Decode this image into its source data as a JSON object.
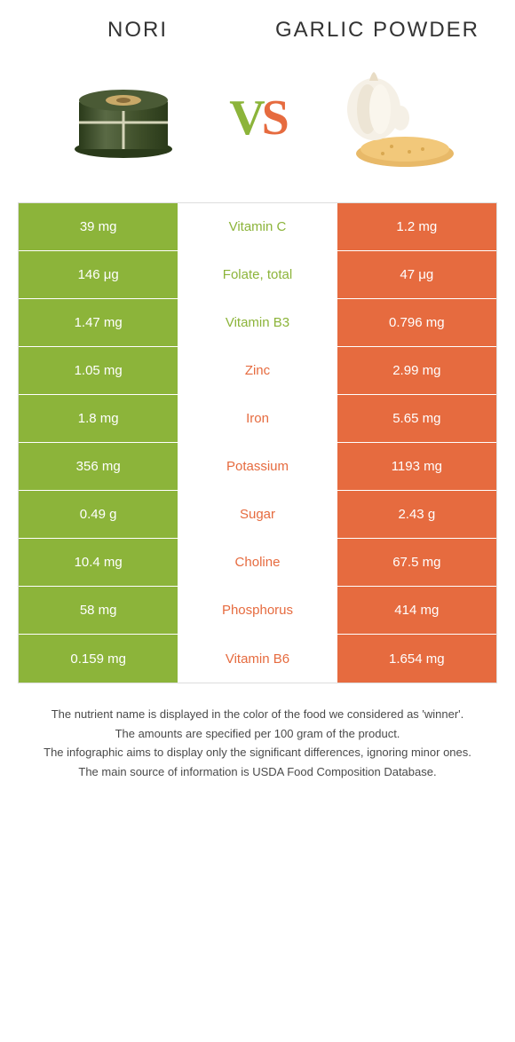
{
  "header": {
    "food1": "Nori",
    "food2": "Garlic powder"
  },
  "vs": {
    "v": "V",
    "s": "S"
  },
  "colors": {
    "green": "#8cb43a",
    "orange": "#e66b3f"
  },
  "rows": [
    {
      "left": "39 mg",
      "label": "Vitamin C",
      "right": "1.2 mg",
      "winner": "green"
    },
    {
      "left": "146 μg",
      "label": "Folate, total",
      "right": "47 μg",
      "winner": "green"
    },
    {
      "left": "1.47 mg",
      "label": "Vitamin B3",
      "right": "0.796 mg",
      "winner": "green"
    },
    {
      "left": "1.05 mg",
      "label": "Zinc",
      "right": "2.99 mg",
      "winner": "orange"
    },
    {
      "left": "1.8 mg",
      "label": "Iron",
      "right": "5.65 mg",
      "winner": "orange"
    },
    {
      "left": "356 mg",
      "label": "Potassium",
      "right": "1193 mg",
      "winner": "orange"
    },
    {
      "left": "0.49 g",
      "label": "Sugar",
      "right": "2.43 g",
      "winner": "orange"
    },
    {
      "left": "10.4 mg",
      "label": "Choline",
      "right": "67.5 mg",
      "winner": "orange"
    },
    {
      "left": "58 mg",
      "label": "Phosphorus",
      "right": "414 mg",
      "winner": "orange"
    },
    {
      "left": "0.159 mg",
      "label": "Vitamin B6",
      "right": "1.654 mg",
      "winner": "orange"
    }
  ],
  "footer": {
    "line1": "The nutrient name is displayed in the color of the food we considered as 'winner'.",
    "line2": "The amounts are specified per 100 gram of the product.",
    "line3": "The infographic aims to display only the significant differences, ignoring minor ones.",
    "line4": "The main source of information is USDA Food Composition Database."
  }
}
